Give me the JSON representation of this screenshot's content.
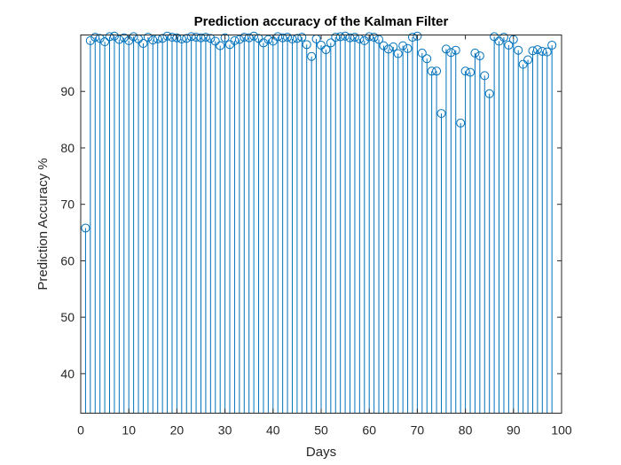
{
  "chart_data": {
    "type": "stem",
    "title": "Prediction accuracy of the Kalman Filter",
    "xlabel": "Days",
    "ylabel": "Prediction Accuracy %",
    "xlim": [
      0,
      100
    ],
    "ylim": [
      33,
      100
    ],
    "xticks": [
      0,
      10,
      20,
      30,
      40,
      50,
      60,
      70,
      80,
      90,
      100
    ],
    "yticks": [
      40,
      50,
      60,
      70,
      80,
      90
    ],
    "grid": false,
    "legend": "none",
    "series_color": "#0072BD",
    "axis_color": "#262626",
    "x": [
      1,
      2,
      3,
      4,
      5,
      6,
      7,
      8,
      9,
      10,
      11,
      12,
      13,
      14,
      15,
      16,
      17,
      18,
      19,
      20,
      21,
      22,
      23,
      24,
      25,
      26,
      27,
      28,
      29,
      30,
      31,
      32,
      33,
      34,
      35,
      36,
      37,
      38,
      39,
      40,
      41,
      42,
      43,
      44,
      45,
      46,
      47,
      48,
      49,
      50,
      51,
      52,
      53,
      54,
      55,
      56,
      57,
      58,
      59,
      60,
      61,
      62,
      63,
      64,
      65,
      66,
      67,
      68,
      69,
      70,
      71,
      72,
      73,
      74,
      75,
      76,
      77,
      78,
      79,
      80,
      81,
      82,
      83,
      84,
      85,
      86,
      87,
      88,
      89,
      90,
      91,
      92,
      93,
      94,
      95,
      96,
      97,
      98
    ],
    "y": [
      65.8,
      99.0,
      99.6,
      99.4,
      98.8,
      99.7,
      99.8,
      99.2,
      99.5,
      99.0,
      99.7,
      99.3,
      98.5,
      99.6,
      99.1,
      99.3,
      99.4,
      99.8,
      99.6,
      99.5,
      99.3,
      99.4,
      99.7,
      99.6,
      99.5,
      99.6,
      99.4,
      98.9,
      98.1,
      99.5,
      98.3,
      99.0,
      99.2,
      99.6,
      99.5,
      99.8,
      99.4,
      98.6,
      99.2,
      98.9,
      99.7,
      99.5,
      99.6,
      99.3,
      99.4,
      99.6,
      98.3,
      96.2,
      99.3,
      98.2,
      97.4,
      98.6,
      99.6,
      99.7,
      99.8,
      99.5,
      99.6,
      99.3,
      99.0,
      99.7,
      99.6,
      99.2,
      98.1,
      97.5,
      97.9,
      96.7,
      98.1,
      97.6,
      99.6,
      99.8,
      96.8,
      95.8,
      93.6,
      93.6,
      86.1,
      97.5,
      96.9,
      97.3,
      84.4,
      93.6,
      93.4,
      96.8,
      96.3,
      92.8,
      89.6,
      99.7,
      98.9,
      99.6,
      98.2,
      99.2,
      97.3,
      94.8,
      95.6,
      97.2,
      97.4,
      97.1,
      97.0,
      98.2
    ]
  }
}
